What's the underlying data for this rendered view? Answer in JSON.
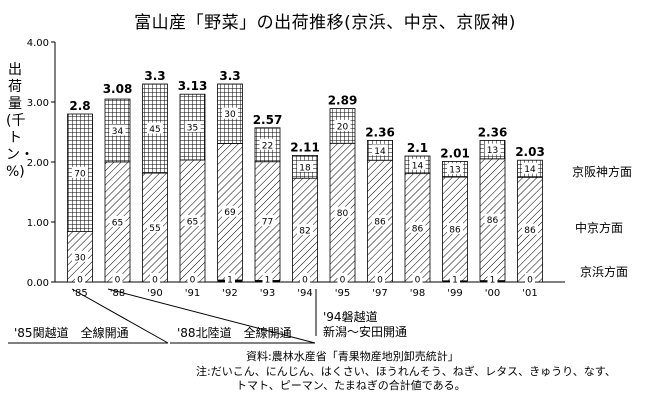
{
  "title": "富山産「野菜」の出荷推移(京浜、中京、京阪神)",
  "ylabel": "出荷量(千トン・%)",
  "source": "資料:農林水産省「青果物産地別卸売統計」",
  "note_line1": "注:だいこん、にんじん、はくさい、ほうれんそう、ねぎ、レタス、きゅうり、なす、",
  "note_line2": "トマト、ピーマン、たまねぎの合計値である。",
  "events": [
    {
      "text": "'85関越道　全線開通"
    },
    {
      "text": "'88北陸道　全線開通"
    },
    {
      "text": "'94磐越道\n新潟〜安田開通"
    }
  ],
  "chart_data": {
    "type": "bar",
    "stacked": true,
    "title": "富山産「野菜」の出荷推移(京浜、中京、京阪神)",
    "ylabel": "出荷量(千トン・%)",
    "ylim": [
      0,
      4
    ],
    "yticks": [
      "0.00",
      "1.00",
      "2.00",
      "3.00",
      "4.00"
    ],
    "categories": [
      "'85",
      "'88",
      "'90",
      "'91",
      "'92",
      "'93",
      "'94",
      "'95",
      "'97",
      "'98",
      "'99",
      "'00",
      "'01"
    ],
    "totals": [
      2.8,
      3.08,
      3.3,
      3.13,
      3.3,
      2.57,
      2.11,
      2.89,
      2.36,
      2.1,
      2.01,
      2.36,
      2.03
    ],
    "total_labels": [
      "2.8",
      "3.08",
      "3.3",
      "3.13",
      "3.3",
      "2.57",
      "2.11",
      "2.89",
      "2.36",
      "2.1",
      "2.01",
      "2.36",
      "2.03"
    ],
    "series": [
      {
        "name": "京浜方面",
        "percent": [
          0,
          0,
          0,
          0,
          1,
          1,
          0,
          0,
          0,
          0,
          1,
          1,
          0
        ]
      },
      {
        "name": "中京方面",
        "percent": [
          30,
          65,
          55,
          65,
          69,
          77,
          82,
          80,
          86,
          86,
          86,
          86,
          86
        ]
      },
      {
        "name": "京阪神方面",
        "percent": [
          70,
          34,
          45,
          35,
          30,
          22,
          18,
          20,
          14,
          14,
          13,
          13,
          14
        ]
      }
    ],
    "series_labels": [
      "京浜方面",
      "中京方面",
      "京阪神方面"
    ],
    "grid": false
  }
}
